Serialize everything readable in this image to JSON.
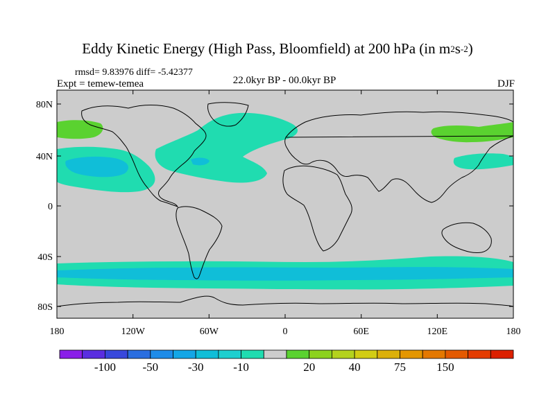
{
  "title": {
    "main": "Eddy Kinetic Energy (High Pass, Bloomfield) at 200 hPa (in m",
    "unit_sup1": "2",
    "unit_s": "s",
    "unit_sup2": "-2",
    "close": ")"
  },
  "stats": "rmsd= 9.83976  diff= -5.42377",
  "expt": "Expt = temew-temea",
  "period": "22.0kyr BP - 00.0kyr BP",
  "season": "DJF",
  "lat_ticks": [
    "80N",
    "40N",
    "0",
    "40S",
    "80S"
  ],
  "lon_ticks": [
    "180",
    "120W",
    "60W",
    "0",
    "60E",
    "120E",
    "180"
  ],
  "colorbar": {
    "colors": [
      "#8a1ee8",
      "#5a2ee0",
      "#3848dc",
      "#2a6ee0",
      "#1e8ce8",
      "#14a6e6",
      "#10bed8",
      "#1ecfcf",
      "#20dcb0",
      "#cccccc",
      "#5ad230",
      "#8cd21e",
      "#b4d21e",
      "#d2cc14",
      "#dcb00a",
      "#e49600",
      "#e47800",
      "#e45a00",
      "#e43c00",
      "#dc2000"
    ],
    "labels": [
      "-100",
      "-50",
      "-30",
      "-10",
      "20",
      "40",
      "75",
      "150"
    ],
    "label_boundaries": [
      2,
      4,
      6,
      8,
      11,
      13,
      15,
      17
    ]
  },
  "legend_colors": {
    "background": "#cccccc",
    "cyan": "#20dcb0",
    "blue": "#10bed8",
    "green": "#5ad230"
  }
}
